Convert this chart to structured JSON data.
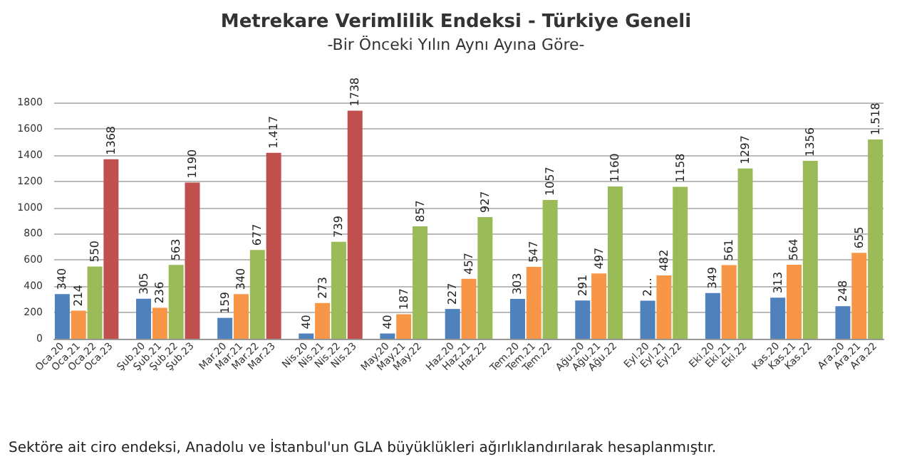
{
  "chart_data": {
    "type": "bar",
    "title": "Metrekare Verimlilik Endeksi - Türkiye Geneli",
    "subtitle": "-Bir Önceki Yılın Aynı Ayına Göre-",
    "annotations": [
      "Sektöre ait ciro endeksi, Anadolu ve İstanbul'un GLA büyüklükleri ağırlıklandırılarak hesaplanmıştır."
    ],
    "categories": [
      "Oca.20",
      "Oca.21",
      "Oca.22",
      "Oca.23",
      null,
      "Şub.20",
      "Şub.21",
      "Şub.22",
      "Şub.23",
      null,
      "Mar.20",
      "Mar.21",
      "Mar.22",
      "Mar.23",
      null,
      "Nis.20",
      "Nis.21",
      "Nis.22",
      "Nis.23",
      null,
      "May.20",
      "May.21",
      "May.22",
      null,
      "Haz.20",
      "Haz.21",
      "Haz.22",
      null,
      "Tem.20",
      "Tem.21",
      "Tem.22",
      null,
      "Ağu.20",
      "Ağu.21",
      "Ağu.22",
      null,
      "Eyl.20",
      "Eyl.21",
      "Eyl.22",
      null,
      "Eki.20",
      "Eki.21",
      "Eki.22",
      null,
      "Kas.20",
      "Kas.21",
      "Kas.22",
      null,
      "Ara.20",
      "Ara.21",
      "Ara.22"
    ],
    "values": [
      340,
      214,
      550,
      1368,
      null,
      305,
      236,
      563,
      1190,
      null,
      159,
      340,
      677,
      1417,
      null,
      40,
      273,
      739,
      1738,
      null,
      40,
      187,
      857,
      null,
      227,
      457,
      927,
      null,
      303,
      547,
      1057,
      null,
      291,
      497,
      1160,
      null,
      290,
      482,
      1158,
      null,
      349,
      561,
      1297,
      null,
      313,
      564,
      1356,
      null,
      248,
      655,
      1518
    ],
    "value_labels": [
      "340",
      "214",
      "550",
      "1368",
      null,
      "305",
      "236",
      "563",
      "1190",
      null,
      "159",
      "340",
      "677",
      "1.417",
      null,
      "40",
      "273",
      "739",
      "1738",
      null,
      "40",
      "187",
      "857",
      null,
      "227",
      "457",
      "927",
      null,
      "303",
      "547",
      "1057",
      null,
      "291",
      "497",
      "1160",
      null,
      "2…",
      "482",
      "1158",
      null,
      "349",
      "561",
      "1297",
      null,
      "313",
      "564",
      "1356",
      null,
      "248",
      "655",
      "1.518"
    ],
    "colors": [
      "#4f81bd",
      "#f79646",
      "#9bbb59",
      "#c0504d",
      null,
      "#4f81bd",
      "#f79646",
      "#9bbb59",
      "#c0504d",
      null,
      "#4f81bd",
      "#f79646",
      "#9bbb59",
      "#c0504d",
      null,
      "#4f81bd",
      "#f79646",
      "#9bbb59",
      "#c0504d",
      null,
      "#4f81bd",
      "#f79646",
      "#9bbb59",
      null,
      "#4f81bd",
      "#f79646",
      "#9bbb59",
      null,
      "#4f81bd",
      "#f79646",
      "#9bbb59",
      null,
      "#4f81bd",
      "#f79646",
      "#9bbb59",
      null,
      "#4f81bd",
      "#f79646",
      "#9bbb59",
      null,
      "#4f81bd",
      "#f79646",
      "#9bbb59",
      null,
      "#4f81bd",
      "#f79646",
      "#9bbb59",
      null,
      "#4f81bd",
      "#f79646",
      "#9bbb59"
    ],
    "ylim": [
      0,
      1800
    ],
    "yticks": [
      0,
      200,
      400,
      600,
      800,
      1000,
      1200,
      1400,
      1600,
      1800
    ],
    "grid": "y"
  }
}
